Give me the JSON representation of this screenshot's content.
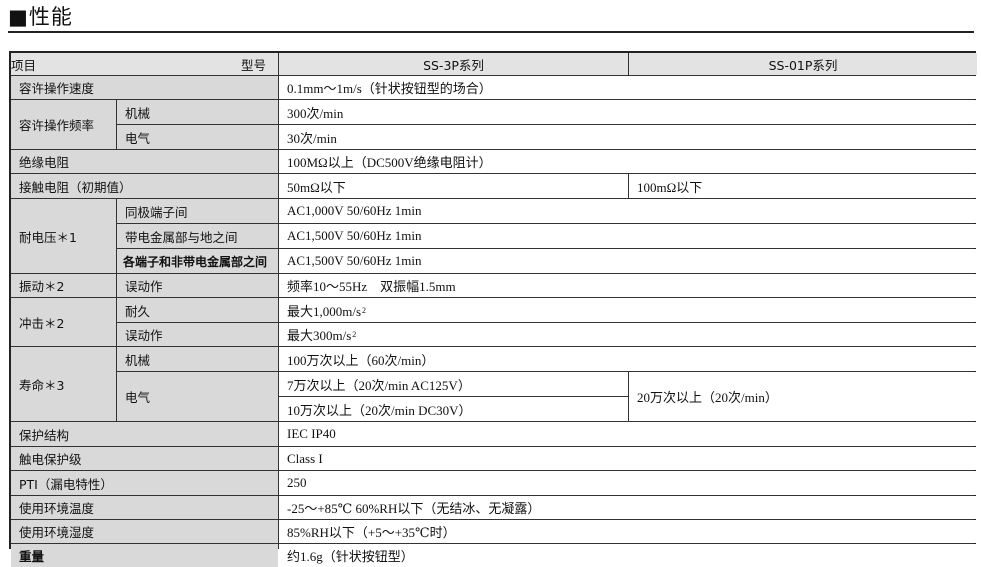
{
  "title": "■性能",
  "header": {
    "item": "项目",
    "model": "型号",
    "col1": "SS-3P系列",
    "col2": "SS-01P系列"
  },
  "rows": {
    "speed": {
      "label": "容许操作速度",
      "value": "0.1mm～1m/s（针状按钮型的场合）"
    },
    "freq": {
      "label": "容许操作频率",
      "mech": "机械",
      "mech_value": "300次/min",
      "elec": "电气",
      "elec_value": "30次/min"
    },
    "insulation": {
      "label": "绝缘电阻",
      "value": "100MΩ以上（DC500V绝缘电阻计）"
    },
    "contact": {
      "label": "接触电阻（初期值）",
      "value1": "50mΩ以下",
      "value2": "100mΩ以下"
    },
    "dielectric": {
      "label": "耐电压＊1",
      "sub1": "同极端子间",
      "val1": "AC1,000V  50/60Hz  1min",
      "sub2": "带电金属部与地之间",
      "val2": "AC1,500V  50/60Hz  1min",
      "sub3": "各端子和非带电金属部之间",
      "val3": "AC1,500V  50/60Hz  1min"
    },
    "vibration": {
      "label": "振动＊2",
      "sub": "误动作",
      "value": "频率10～55Hz　双振幅1.5mm"
    },
    "shock": {
      "label": "冲击＊2",
      "sub1": "耐久",
      "val1": "最大1,000m/s",
      "sub2": "误动作",
      "val2": "最大300m/s",
      "sup": "2"
    },
    "life": {
      "label": "寿命＊3",
      "mech": "机械",
      "mech_value": "100万次以上（60次/min）",
      "elec": "电气",
      "elec_ac": "7万次以上（20次/min  AC125V）",
      "elec_dc": "10万次以上（20次/min   DC30V）",
      "elec_01p": "20万次以上（20次/min）"
    },
    "protection": {
      "label": "保护结构",
      "value": "IEC IP40"
    },
    "shock_class": {
      "label": "触电保护级",
      "value": "Class  I"
    },
    "pti": {
      "label": "PTI（漏电特性）",
      "value": "250"
    },
    "temp": {
      "label": "使用环境温度",
      "value": "-25～+85℃  60%RH以下（无结冰、无凝露）"
    },
    "humidity": {
      "label": "使用环境湿度",
      "value": "85%RH以下（+5～+35℃时）"
    },
    "weight": {
      "label": "重量",
      "value": "约1.6g（针状按钮型）"
    }
  }
}
